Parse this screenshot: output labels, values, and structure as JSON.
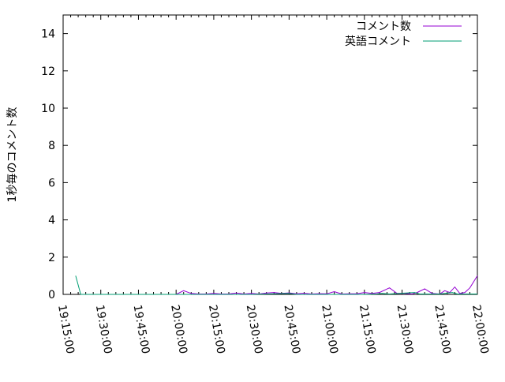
{
  "chart_data": {
    "type": "line",
    "title": "",
    "xlabel": "",
    "ylabel": "1秒毎のコメント数",
    "xlim": [
      "19:15:00",
      "22:00:00"
    ],
    "ylim": [
      0,
      15
    ],
    "x_ticks": [
      "19:15:00",
      "19:30:00",
      "19:45:00",
      "20:00:00",
      "20:15:00",
      "20:30:00",
      "20:45:00",
      "21:00:00",
      "21:15:00",
      "21:30:00",
      "21:45:00",
      "22:00:00"
    ],
    "y_ticks": [
      0,
      2,
      4,
      6,
      8,
      10,
      12,
      14
    ],
    "grid": false,
    "legend_position": "top-right",
    "series": [
      {
        "name": "コメント数",
        "color": "#9400d3",
        "points": [
          [
            "19:57",
            0
          ],
          [
            "20:00",
            0
          ],
          [
            "20:03",
            0.2
          ],
          [
            "20:06",
            0.05
          ],
          [
            "20:09",
            0.02
          ],
          [
            "20:12",
            0.02
          ],
          [
            "20:15",
            0.05
          ],
          [
            "20:18",
            0.02
          ],
          [
            "20:21",
            0.02
          ],
          [
            "20:24",
            0.07
          ],
          [
            "20:27",
            0.02
          ],
          [
            "20:30",
            0.05
          ],
          [
            "20:33",
            0.02
          ],
          [
            "20:36",
            0.07
          ],
          [
            "20:39",
            0.1
          ],
          [
            "20:42",
            0.05
          ],
          [
            "20:45",
            0.08
          ],
          [
            "20:48",
            0.03
          ],
          [
            "20:51",
            0.06
          ],
          [
            "20:54",
            0.02
          ],
          [
            "20:57",
            0.04
          ],
          [
            "21:00",
            0.03
          ],
          [
            "21:03",
            0.15
          ],
          [
            "21:06",
            0.02
          ],
          [
            "21:09",
            0.03
          ],
          [
            "21:12",
            0.03
          ],
          [
            "21:15",
            0.1
          ],
          [
            "21:18",
            0.05
          ],
          [
            "21:21",
            0.1
          ],
          [
            "21:25",
            0.35
          ],
          [
            "21:28",
            0.05
          ],
          [
            "21:31",
            0.05
          ],
          [
            "21:34",
            0.02
          ],
          [
            "21:36",
            0.1
          ],
          [
            "21:39",
            0.3
          ],
          [
            "21:42",
            0.05
          ],
          [
            "21:45",
            0.02
          ],
          [
            "21:47",
            0.2
          ],
          [
            "21:49",
            0.1
          ],
          [
            "21:51",
            0.4
          ],
          [
            "21:53",
            0.05
          ],
          [
            "21:55",
            0.1
          ],
          [
            "21:57",
            0.35
          ],
          [
            "22:00",
            1.0
          ]
        ]
      },
      {
        "name": "英語コメント",
        "color": "#009e73",
        "points": [
          [
            "19:20",
            1.0
          ],
          [
            "19:22",
            0
          ],
          [
            "20:00",
            0
          ],
          [
            "20:15",
            0
          ],
          [
            "20:30",
            0
          ],
          [
            "20:45",
            0.05
          ],
          [
            "20:48",
            0
          ],
          [
            "21:00",
            0
          ],
          [
            "21:15",
            0
          ],
          [
            "21:20",
            0.02
          ],
          [
            "21:22",
            0.05
          ],
          [
            "21:25",
            0.02
          ],
          [
            "21:35",
            0.1
          ],
          [
            "21:37",
            0.02
          ],
          [
            "21:45",
            0.02
          ],
          [
            "21:50",
            0.1
          ],
          [
            "21:52",
            0.02
          ],
          [
            "22:00",
            0.02
          ]
        ]
      }
    ]
  }
}
